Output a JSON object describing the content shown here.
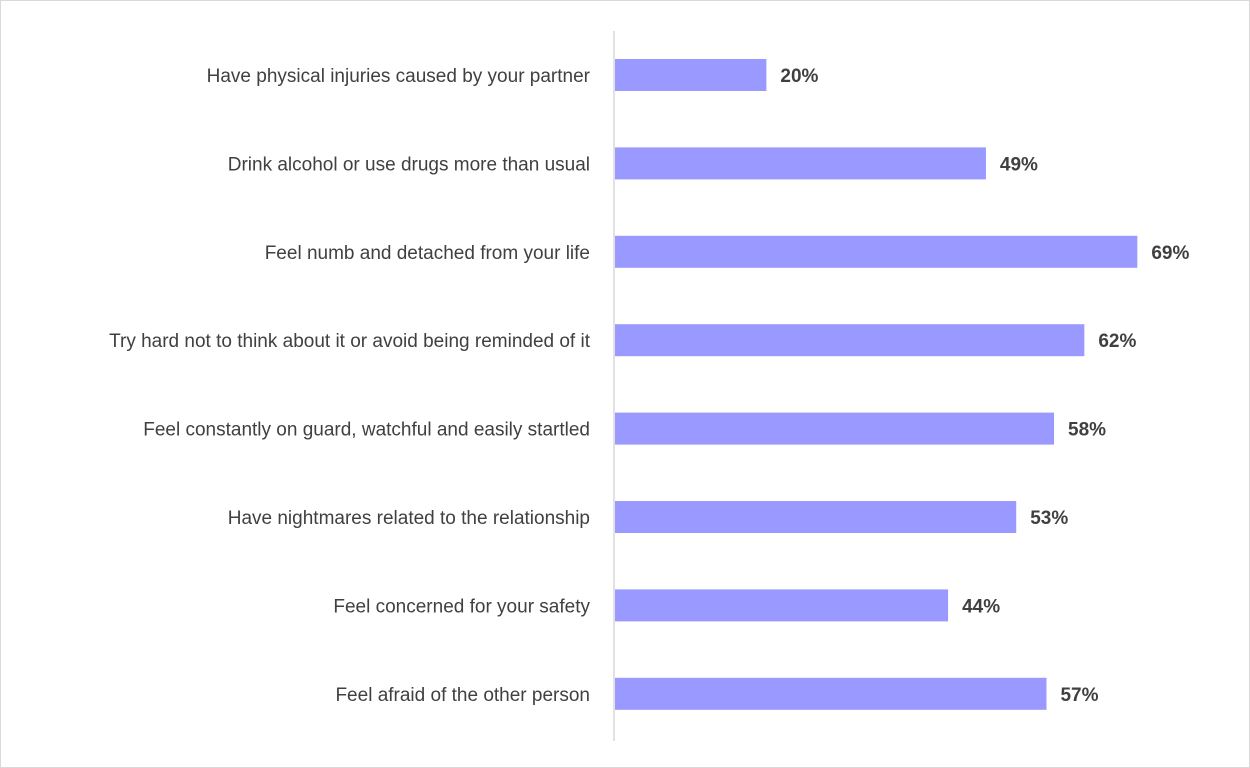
{
  "chart_data": {
    "type": "bar",
    "orientation": "horizontal",
    "title": "",
    "xlabel": "",
    "ylabel": "",
    "categories": [
      "Have physical injuries caused by your partner",
      "Drink alcohol or use drugs more than usual",
      "Feel numb and detached from your life",
      "Try hard not to think about it or avoid being reminded of it",
      "Feel constantly on guard, watchful and easily startled",
      "Have nightmares related to the relationship",
      "Feel concerned for your safety",
      "Feel afraid of the other person"
    ],
    "values": [
      20,
      49,
      69,
      62,
      58,
      53,
      44,
      57
    ],
    "value_labels": [
      "20%",
      "49%",
      "69%",
      "62%",
      "58%",
      "53%",
      "44%",
      "57%"
    ],
    "xlim": [
      0,
      69
    ],
    "grid": false,
    "legend": "none",
    "colors": {
      "bar": "#9999ff",
      "axis": "#d9d9d9",
      "text": "#404040",
      "frame": "#d9d9d9"
    }
  }
}
